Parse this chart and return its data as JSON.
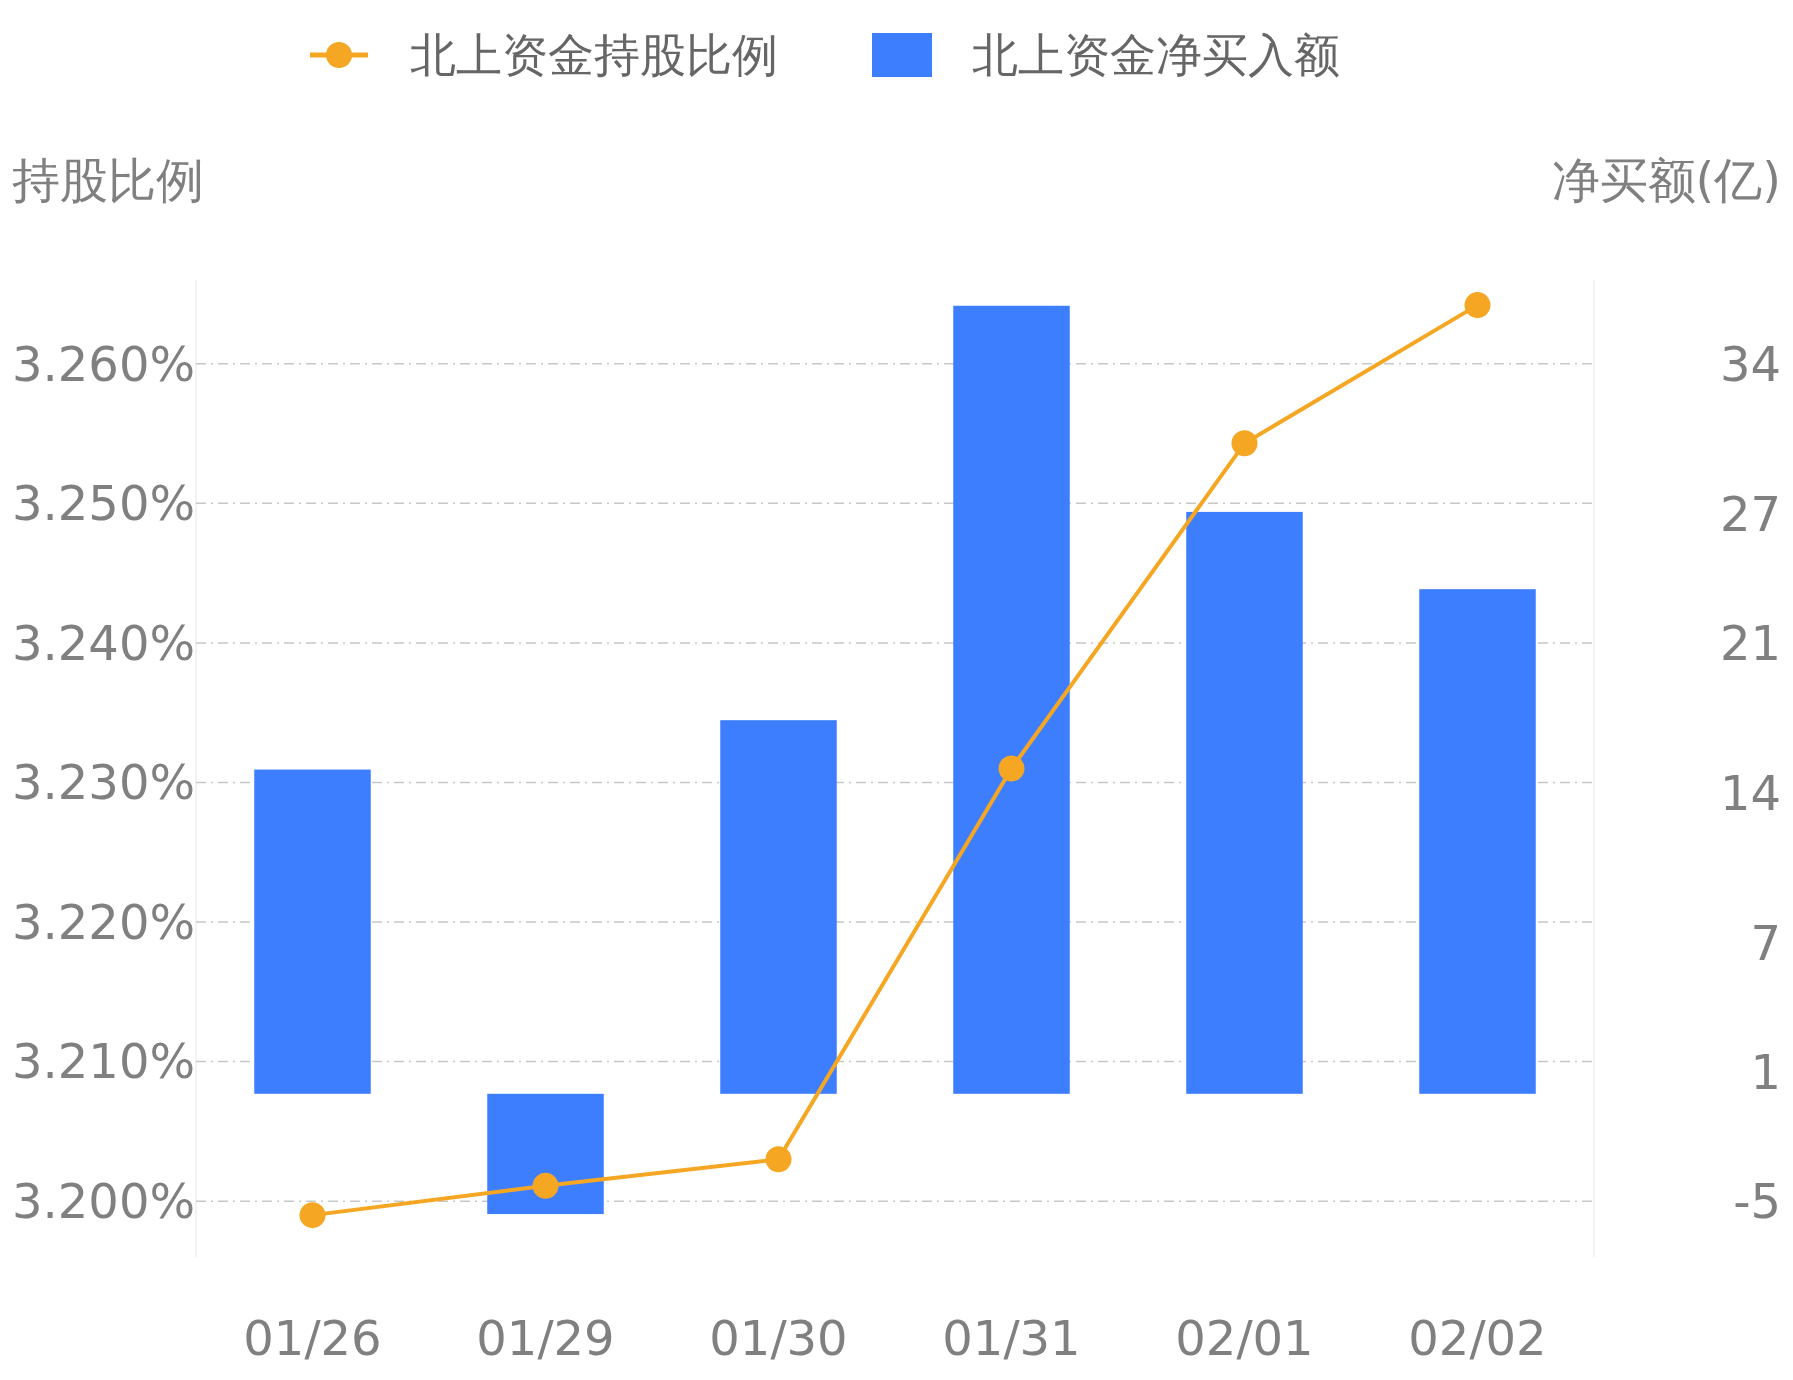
{
  "chart_data": {
    "type": "bar",
    "categories": [
      "01/26",
      "01/29",
      "01/30",
      "01/31",
      "02/01",
      "02/02"
    ],
    "series": [
      {
        "name": "北上资金持股比例",
        "type": "line",
        "axis": "y",
        "color": "#f5a623",
        "values": [
          3.199,
          3.2011,
          3.203,
          3.231,
          3.2543,
          3.2642
        ]
      },
      {
        "name": "北上资金净买入额",
        "axis": "y2",
        "color": "#3d7eff",
        "values": [
          15.1,
          -5.6,
          17.4,
          36.7,
          27.1,
          23.5
        ]
      }
    ],
    "ylabel": "持股比例",
    "y2label": "净买额(亿)",
    "ylim": [
      3.196,
      3.266
    ],
    "yticks": [
      {
        "value": 3.2,
        "label": "3.200%"
      },
      {
        "value": 3.21,
        "label": "3.210%"
      },
      {
        "value": 3.22,
        "label": "3.220%"
      },
      {
        "value": 3.23,
        "label": "3.230%"
      },
      {
        "value": 3.24,
        "label": "3.240%"
      },
      {
        "value": 3.25,
        "label": "3.250%"
      },
      {
        "value": 3.26,
        "label": "3.260%"
      }
    ],
    "y2lim": [
      -7.6,
      37.9
    ],
    "y2ticks": [
      -5,
      1,
      7,
      14,
      21,
      27,
      34
    ],
    "grid": "y",
    "legend": "top",
    "marker": "circle"
  }
}
